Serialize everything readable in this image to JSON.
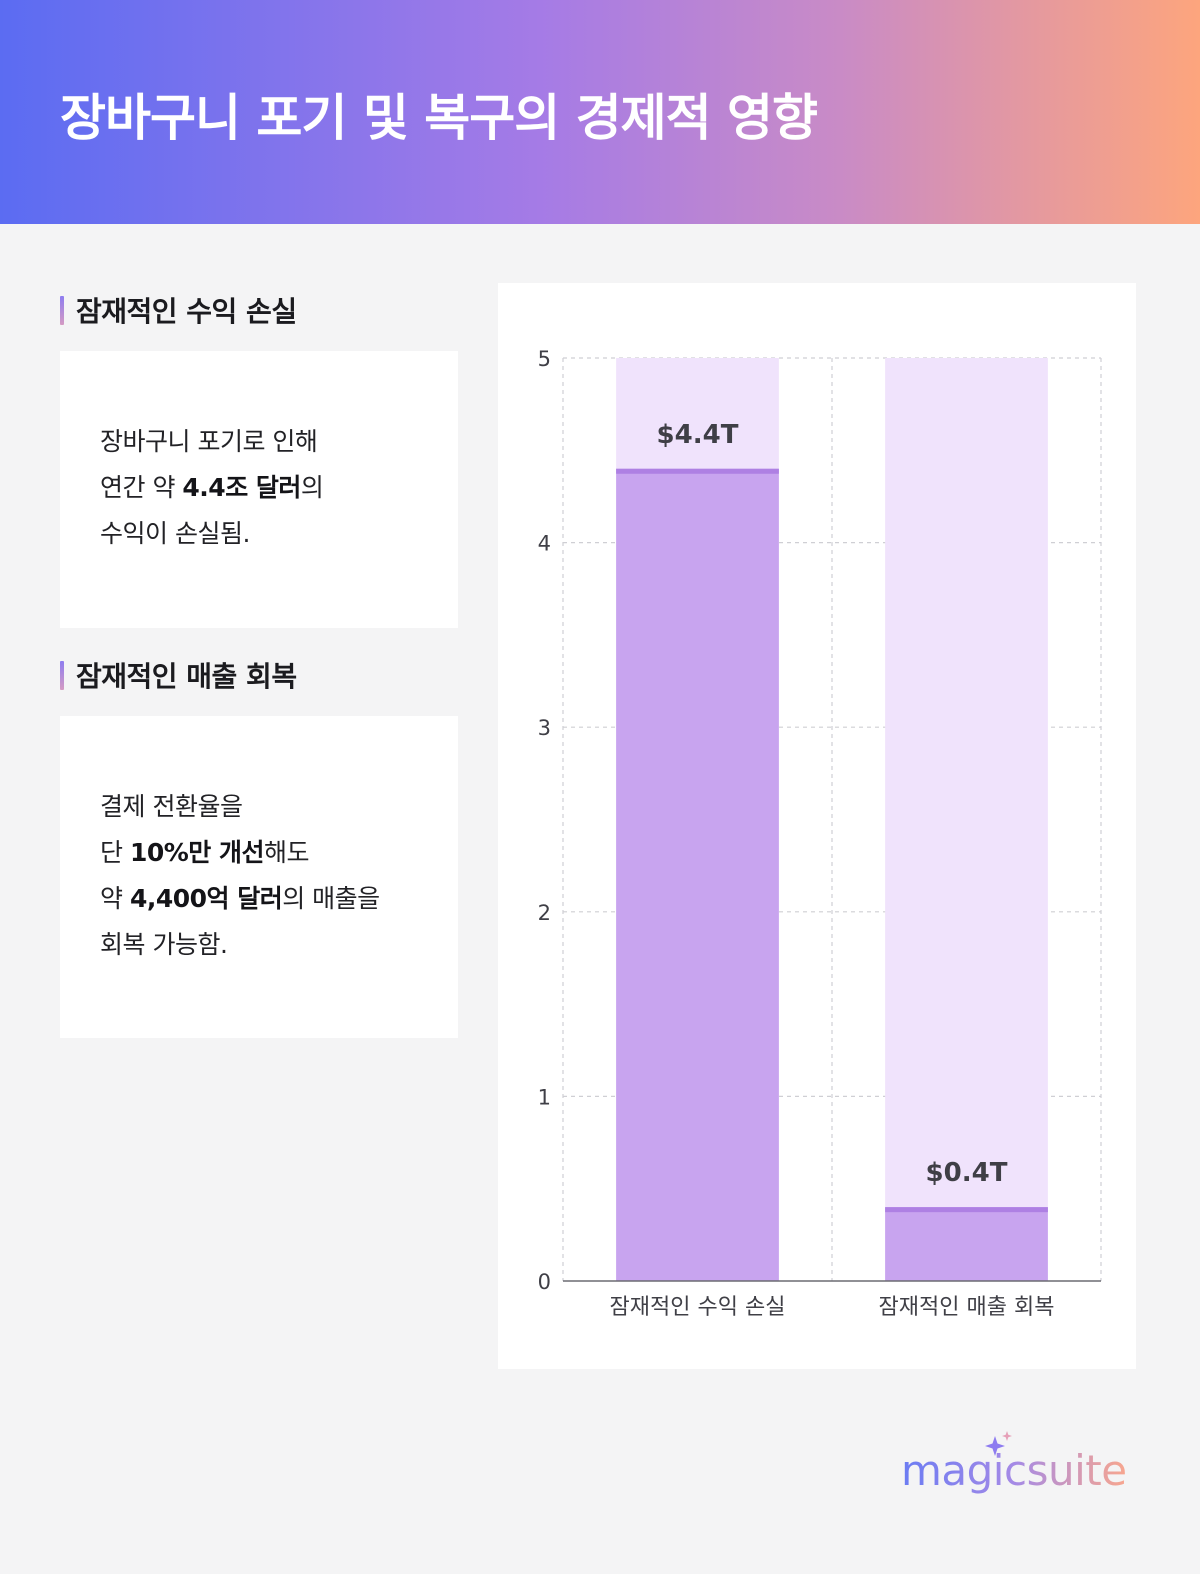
{
  "header": {
    "title": "장바구니 포기 및 복구의 경제적 영향"
  },
  "sections": [
    {
      "title": "잠재적인 수익 손실",
      "lines": [
        [
          {
            "t": "장바구니 포기로 인해",
            "b": false
          }
        ],
        [
          {
            "t": "연간 약 ",
            "b": false
          },
          {
            "t": "4.4조 달러",
            "b": true
          },
          {
            "t": "의",
            "b": false
          }
        ],
        [
          {
            "t": "수익이 손실됨.",
            "b": false
          }
        ]
      ]
    },
    {
      "title": "잠재적인 매출 회복",
      "lines": [
        [
          {
            "t": "결제 전환율을",
            "b": false
          }
        ],
        [
          {
            "t": "단 ",
            "b": false
          },
          {
            "t": "10%만 개선",
            "b": true
          },
          {
            "t": "해도",
            "b": false
          }
        ],
        [
          {
            "t": "약 ",
            "b": false
          },
          {
            "t": "4,400억 달러",
            "b": true
          },
          {
            "t": "의 매출을",
            "b": false
          }
        ],
        [
          {
            "t": "회복 가능함.",
            "b": false
          }
        ]
      ]
    }
  ],
  "chart_data": {
    "type": "bar",
    "categories": [
      "잠재적인 수익 손실",
      "잠재적인 매출 회복"
    ],
    "values": [
      4.4,
      0.4
    ],
    "data_labels": [
      "$4.4T",
      "$0.4T"
    ],
    "ylim": [
      0,
      5
    ],
    "yticks": [
      "0",
      "1",
      "2",
      "3",
      "4",
      "5"
    ],
    "grid": true,
    "colors": {
      "bar": "#c8a4ef",
      "bar_top": "#ae80e3",
      "background_bar": "#f0e3fc",
      "grid": "#cfcfd4",
      "axis": "#6b6b72",
      "label": "#3f3f46"
    }
  },
  "brand": {
    "name": "magicsuite"
  }
}
